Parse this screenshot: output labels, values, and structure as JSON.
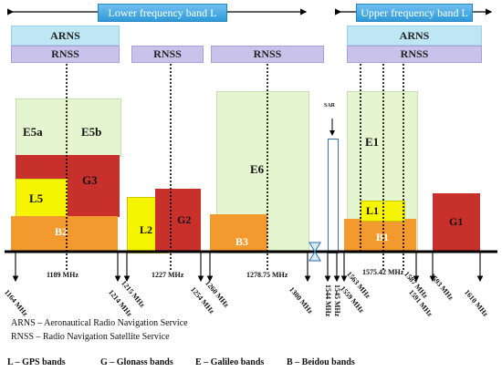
{
  "bands": {
    "lower": "Lower frequency band L",
    "upper": "Upper frequency band L"
  },
  "services": {
    "arns": "ARNS",
    "rnss": "RNSS"
  },
  "signals": {
    "e5a": "E5a",
    "e5b": "E5b",
    "g3": "G3",
    "l5": "L5",
    "b2": "B2",
    "l2": "L2",
    "g2": "G2",
    "e6": "E6",
    "b3": "B3",
    "e1": "E1",
    "l1": "L1",
    "b1": "B1",
    "g1": "G1",
    "sar": "SAR"
  },
  "freqs": {
    "f1164": "1164 MHz",
    "f1189": "1189 MHz",
    "f1214": "1214 MHz",
    "f1215": "1215 MHz",
    "f1227": "1227 MHz",
    "f1254": "1254 MHz",
    "f1260": "1260 MHz",
    "f1278": "1278.75 MHz",
    "f1300": "1300 MHz",
    "f1544": "1544 MHz",
    "f1545": "1545 MHz",
    "f1559": "1559 MHz",
    "f1563": "1563 MHz",
    "f1575": "1575.42 MHz",
    "f1587": "1587 MHz",
    "f1591": "1591 MHz",
    "f1593": "1593 MHz",
    "f1610": "1610 MHz"
  },
  "legend": {
    "arns": "ARNS – Aeronautical Radio Navigation Service",
    "rnss": "RNSS – Radio Navigation Satellite Service"
  },
  "footer": {
    "gps": "L – GPS bands",
    "glonass": "G – Glonass bands",
    "galileo": "E – Galileo bands",
    "beidou": "B – Beidou bands"
  },
  "colors": {
    "galileo": "#e4f5cf",
    "glonass": "#c8302c",
    "gps": "#f5f500",
    "beidou": "#f39a2e"
  }
}
